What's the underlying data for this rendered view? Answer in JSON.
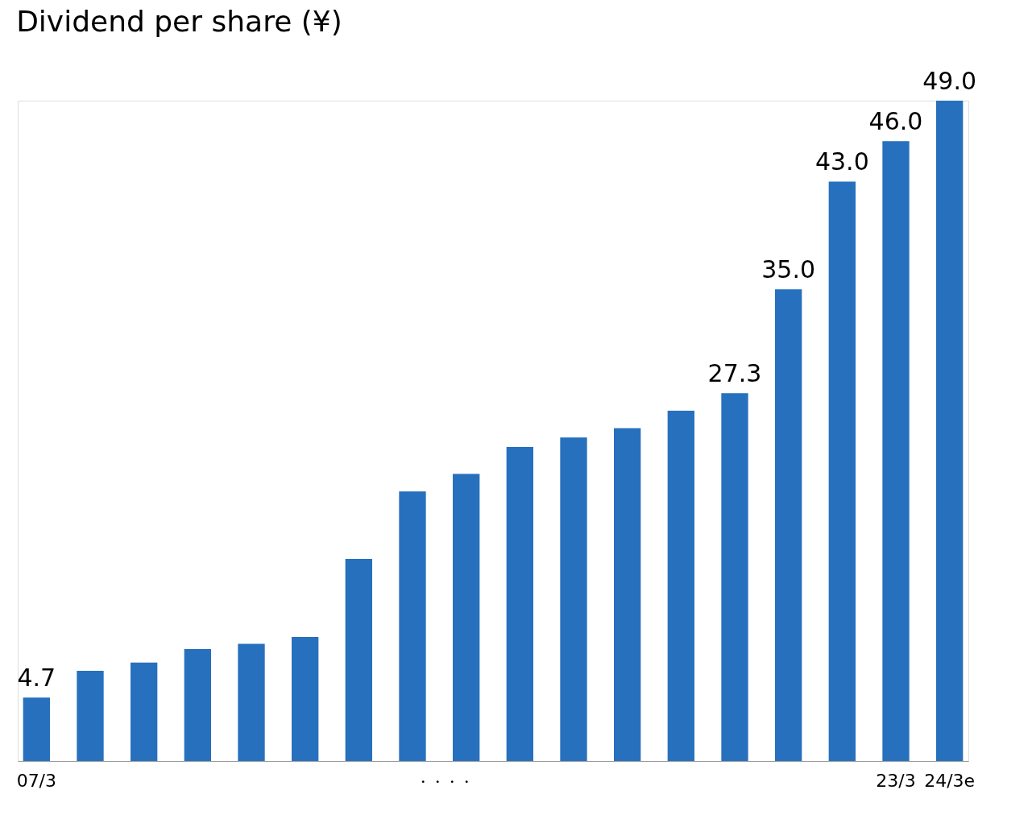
{
  "chart_data": {
    "type": "bar",
    "title": "Dividend per share (¥)",
    "categories": [
      "07/3",
      null,
      null,
      null,
      null,
      null,
      null,
      null,
      null,
      null,
      null,
      null,
      null,
      null,
      null,
      null,
      "23/3",
      "24/3e"
    ],
    "values": [
      4.7,
      6.7,
      7.3,
      8.3,
      8.7,
      9.2,
      15.0,
      20.0,
      21.3,
      23.3,
      24.0,
      24.7,
      26.0,
      27.3,
      35.0,
      43.0,
      46.0,
      49.0
    ],
    "value_labels": [
      "4.7",
      null,
      null,
      null,
      null,
      null,
      null,
      null,
      null,
      null,
      null,
      null,
      null,
      "27.3",
      "35.0",
      "43.0",
      "46.0",
      "49.0"
    ],
    "color": "#2770be",
    "annotations": [
      "・・・・"
    ],
    "grid": false
  }
}
